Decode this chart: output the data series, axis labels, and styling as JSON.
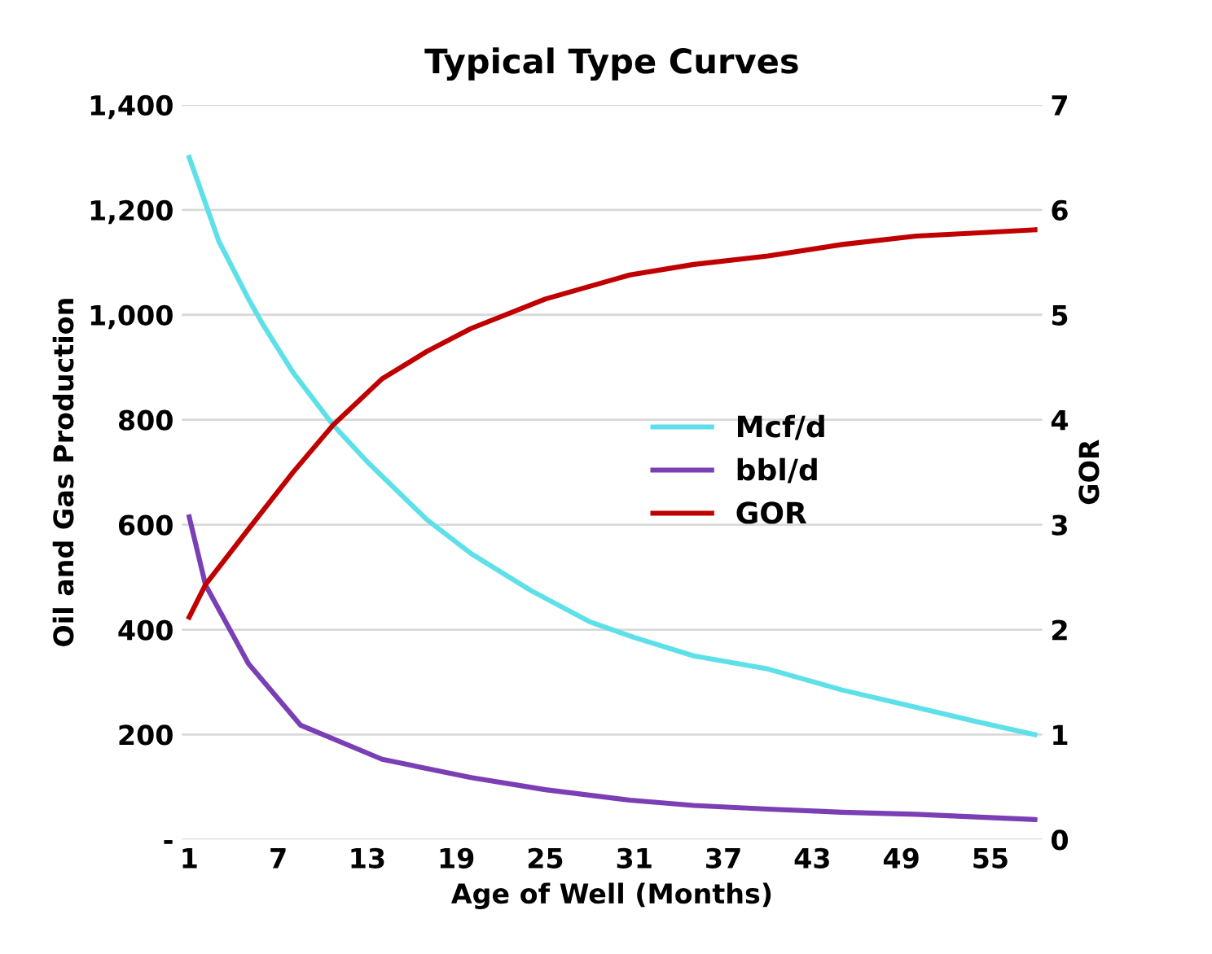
{
  "chart_data": {
    "type": "line",
    "title": "Typical Type Curves",
    "xlabel": "Age of Well (Months)",
    "ylabel": "Oil and Gas Production",
    "y2label": "GOR",
    "xlim": [
      0.5,
      58.5
    ],
    "xticks": [
      1,
      7,
      13,
      19,
      25,
      31,
      37,
      43,
      49,
      55
    ],
    "ylim": [
      0,
      1400
    ],
    "yticks": [
      {
        "value": 0,
        "label": "-"
      },
      {
        "value": 200,
        "label": "200"
      },
      {
        "value": 400,
        "label": "400"
      },
      {
        "value": 600,
        "label": "600"
      },
      {
        "value": 800,
        "label": "800"
      },
      {
        "value": 1000,
        "label": "1,000"
      },
      {
        "value": 1200,
        "label": "1,200"
      },
      {
        "value": 1400,
        "label": "1,400"
      }
    ],
    "y2lim": [
      0,
      7
    ],
    "y2ticks": [
      0,
      1,
      2,
      3,
      4,
      5,
      6,
      7
    ],
    "grid": "y",
    "legend": "right",
    "marker": "none",
    "line_style": "solid",
    "series": [
      {
        "name": "Mcf/d",
        "color": "#5ee0e8",
        "x": [
          1,
          3,
          5,
          6,
          8,
          10.7,
          13,
          17,
          20,
          24,
          28,
          31,
          35,
          40,
          45,
          50,
          54,
          58
        ],
        "values": [
          1300,
          1140,
          1030,
          980,
          890,
          790,
          720,
          610,
          545,
          475,
          415,
          385,
          350,
          325,
          285,
          252,
          225,
          200
        ]
      },
      {
        "name": "bbl/d",
        "color": "#7b3fb5",
        "x": [
          1,
          2.1,
          5,
          8.5,
          14,
          20,
          25,
          30.7,
          35,
          40,
          45,
          50,
          54,
          58
        ],
        "values": [
          615,
          485,
          335,
          218,
          153,
          118,
          95,
          75,
          65,
          58,
          52,
          48,
          43,
          38
        ]
      },
      {
        "name": "GOR",
        "color": "#c00000",
        "axis": "y2",
        "x": [
          1,
          2.1,
          5,
          8,
          10.7,
          14,
          17,
          20,
          25,
          30.7,
          35,
          40,
          45,
          50,
          54,
          58
        ],
        "values": [
          2.12,
          2.43,
          2.96,
          3.5,
          3.95,
          4.39,
          4.65,
          4.87,
          5.15,
          5.38,
          5.48,
          5.56,
          5.67,
          5.75,
          5.78,
          5.81
        ]
      }
    ]
  }
}
